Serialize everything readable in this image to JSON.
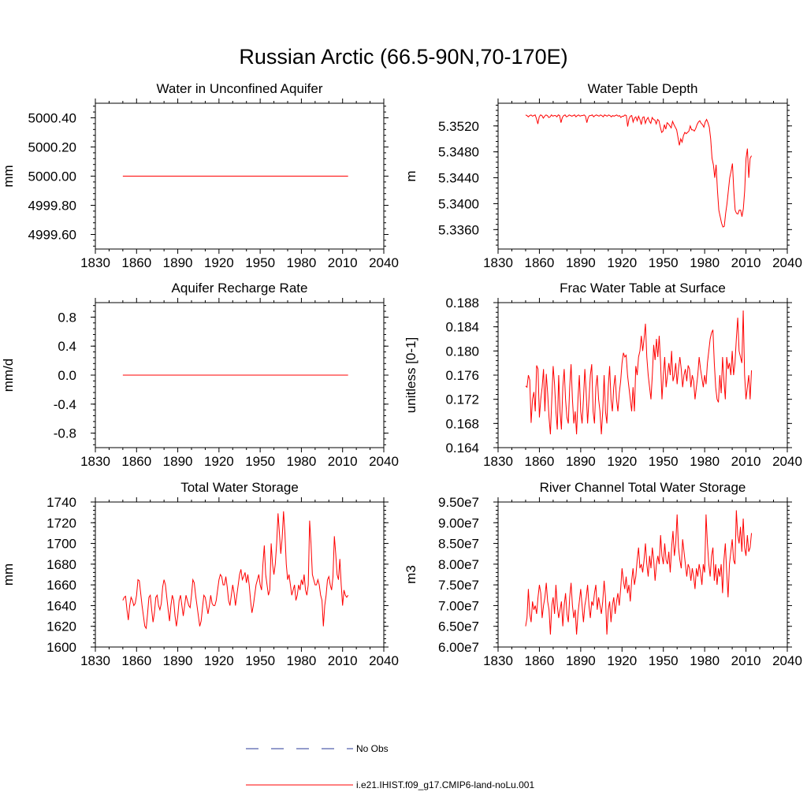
{
  "figure": {
    "title": "Russian Arctic (66.5-90N,70-170E)"
  },
  "legend": {
    "entries": [
      {
        "label": "No Obs",
        "color": "#2a3a9a",
        "dash": true
      },
      {
        "label": "i.e21.IHIST.f09_g17.CMIP6-land-noLu.001",
        "color": "#ff0000",
        "dash": false
      }
    ]
  },
  "chart_data": [
    {
      "type": "line",
      "title": "Water in Unconfined Aquifer",
      "ylabel": "mm",
      "xlim": [
        1830,
        2040
      ],
      "xticks": [
        1830,
        1860,
        1890,
        1920,
        1950,
        1980,
        2010,
        2040
      ],
      "ylim": [
        4999.5,
        5000.5
      ],
      "yticks": [
        4999.6,
        4999.8,
        5000.0,
        5000.2,
        5000.4
      ],
      "ytick_labels": [
        "4999.60",
        "4999.80",
        "5000.00",
        "5000.20",
        "5000.40"
      ],
      "series": [
        {
          "color": "#ff0000",
          "x_start": 1850,
          "x_end": 2014,
          "values": [
            5000.0,
            5000.0,
            5000.0
          ]
        }
      ]
    },
    {
      "type": "line",
      "title": "Water Table Depth",
      "ylabel": "m",
      "xlim": [
        1830,
        2040
      ],
      "xticks": [
        1830,
        1860,
        1890,
        1920,
        1950,
        1980,
        2010,
        2040
      ],
      "ylim": [
        5.333,
        5.3555
      ],
      "yticks": [
        5.336,
        5.34,
        5.344,
        5.348,
        5.352
      ],
      "ytick_labels": [
        "5.3360",
        "5.3400",
        "5.3440",
        "5.3480",
        "5.3520"
      ],
      "series": [
        {
          "color": "#ff0000",
          "x_start": 1850,
          "x_end": 2014,
          "values": [
            5.3537,
            5.3536,
            5.3534,
            5.3536,
            5.3537,
            5.3535,
            5.3536,
            5.3537,
            5.3531,
            5.3523,
            5.3534,
            5.3537,
            5.3536,
            5.3532,
            5.3535,
            5.3537,
            5.3536,
            5.3533,
            5.3534,
            5.3537,
            5.3535,
            5.3536,
            5.3536,
            5.3534,
            5.3537,
            5.3536,
            5.3525,
            5.3533,
            5.3536,
            5.3537,
            5.3534,
            5.3535,
            5.3537,
            5.3536,
            5.3535,
            5.3536,
            5.3537,
            5.3534,
            5.3536,
            5.3537,
            5.3535,
            5.3536,
            5.3536,
            5.3537,
            5.3535,
            5.3525,
            5.3533,
            5.3536,
            5.3536,
            5.3537,
            5.3534,
            5.3536,
            5.3537,
            5.3536,
            5.3535,
            5.3537,
            5.3536,
            5.3534,
            5.3537,
            5.3536,
            5.3535,
            5.3537,
            5.3536,
            5.3534,
            5.3536,
            5.3535,
            5.3536,
            5.3537,
            5.3535,
            5.3536,
            5.3533,
            5.3535,
            5.3535,
            5.3537,
            5.3536,
            5.3519,
            5.3531,
            5.3535,
            5.3536,
            5.3526,
            5.3532,
            5.3534,
            5.3528,
            5.3535,
            5.353,
            5.3522,
            5.3533,
            5.3534,
            5.3524,
            5.353,
            5.3533,
            5.3527,
            5.3524,
            5.3533,
            5.353,
            5.3529,
            5.3523,
            5.353,
            5.3528,
            5.3518,
            5.351,
            5.3512,
            5.3522,
            5.3515,
            5.3525,
            5.3523,
            5.352,
            5.3517,
            5.3527,
            5.3522,
            5.3518,
            5.3514,
            5.3502,
            5.349,
            5.35,
            5.3495,
            5.3505,
            5.351,
            5.3508,
            5.351,
            5.3512,
            5.352,
            5.3514,
            5.3514,
            5.3512,
            5.3516,
            5.3522,
            5.3526,
            5.3528,
            5.3524,
            5.3522,
            5.3518,
            5.3526,
            5.353,
            5.3525,
            5.3518,
            5.35,
            5.347,
            5.346,
            5.344,
            5.346,
            5.342,
            5.339,
            5.338,
            5.337,
            5.3364,
            5.3365,
            5.3385,
            5.34,
            5.342,
            5.344,
            5.345,
            5.3462,
            5.342,
            5.339,
            5.3385,
            5.3384,
            5.339,
            5.339,
            5.338,
            5.3392,
            5.342,
            5.347,
            5.3485,
            5.344,
            5.347,
            5.3474
          ]
        }
      ]
    },
    {
      "type": "line",
      "title": "Aquifer Recharge Rate",
      "ylabel": "mm/d",
      "xlim": [
        1830,
        2040
      ],
      "xticks": [
        1830,
        1860,
        1890,
        1920,
        1950,
        1980,
        2010,
        2040
      ],
      "ylim": [
        -1.0,
        1.0
      ],
      "yticks": [
        -0.8,
        -0.4,
        0.0,
        0.4,
        0.8
      ],
      "ytick_labels": [
        "-0.8",
        "-0.4",
        "0.0",
        "0.4",
        "0.8"
      ],
      "series": [
        {
          "color": "#ff0000",
          "x_start": 1850,
          "x_end": 2014,
          "values": [
            0.0,
            0.0,
            0.0
          ]
        }
      ]
    },
    {
      "type": "line",
      "title": "Frac Water Table at Surface",
      "ylabel": "unitless [0-1]",
      "xlim": [
        1830,
        2040
      ],
      "xticks": [
        1830,
        1860,
        1890,
        1920,
        1950,
        1980,
        2010,
        2040
      ],
      "ylim": [
        0.164,
        0.188
      ],
      "yticks": [
        0.164,
        0.168,
        0.172,
        0.176,
        0.18,
        0.184,
        0.188
      ],
      "ytick_labels": [
        "0.164",
        "0.168",
        "0.172",
        "0.176",
        "0.180",
        "0.184",
        "0.188"
      ],
      "series": [
        {
          "color": "#ff0000",
          "x_start": 1850,
          "x_end": 2014,
          "values": [
            0.1742,
            0.174,
            0.176,
            0.1752,
            0.1681,
            0.172,
            0.1732,
            0.17,
            0.1776,
            0.177,
            0.169,
            0.172,
            0.174,
            0.177,
            0.17,
            0.1762,
            0.173,
            0.169,
            0.1662,
            0.172,
            0.1775,
            0.1745,
            0.17,
            0.167,
            0.176,
            0.17,
            0.167,
            0.174,
            0.177,
            0.172,
            0.169,
            0.168,
            0.174,
            0.1778,
            0.172,
            0.168,
            0.17,
            0.1662,
            0.172,
            0.176,
            0.17,
            0.168,
            0.172,
            0.177,
            0.173,
            0.168,
            0.172,
            0.176,
            0.1778,
            0.17,
            0.168,
            0.174,
            0.176,
            0.172,
            0.17,
            0.1662,
            0.17,
            0.176,
            0.17,
            0.168,
            0.174,
            0.1775,
            0.172,
            0.17,
            0.174,
            0.176,
            0.172,
            0.17,
            0.173,
            0.175,
            0.178,
            0.1797,
            0.179,
            0.1793,
            0.176,
            0.174,
            0.172,
            0.17,
            0.174,
            0.17,
            0.1775,
            0.176,
            0.179,
            0.18,
            0.1825,
            0.18,
            0.182,
            0.1845,
            0.179,
            0.176,
            0.174,
            0.172,
            0.176,
            0.181,
            0.1785,
            0.182,
            0.179,
            0.1825,
            0.178,
            0.172,
            0.176,
            0.179,
            0.174,
            0.176,
            0.178,
            0.176,
            0.18,
            0.175,
            0.176,
            0.178,
            0.1745,
            0.177,
            0.179,
            0.177,
            0.174,
            0.176,
            0.177,
            0.175,
            0.1776,
            0.177,
            0.174,
            0.176,
            0.175,
            0.172,
            0.174,
            0.176,
            0.179,
            0.177,
            0.1755,
            0.174,
            0.176,
            0.1745,
            0.178,
            0.18,
            0.182,
            0.183,
            0.1835,
            0.178,
            0.174,
            0.172,
            0.1715,
            0.176,
            0.173,
            0.179,
            0.175,
            0.172,
            0.179,
            0.177,
            0.178,
            0.176,
            0.18,
            0.176,
            0.178,
            0.182,
            0.1855,
            0.18,
            0.179,
            0.178,
            0.1867,
            0.176,
            0.172,
            0.174,
            0.176,
            0.172,
            0.1768
          ]
        }
      ]
    },
    {
      "type": "line",
      "title": "Total Water Storage",
      "ylabel": "mm",
      "xlim": [
        1830,
        2040
      ],
      "xticks": [
        1830,
        1860,
        1890,
        1920,
        1950,
        1980,
        2010,
        2040
      ],
      "ylim": [
        1600,
        1740
      ],
      "yticks": [
        1600,
        1620,
        1640,
        1660,
        1680,
        1700,
        1720,
        1740
      ],
      "ytick_labels": [
        "1600",
        "1620",
        "1640",
        "1660",
        "1680",
        "1700",
        "1720",
        "1740"
      ],
      "series": [
        {
          "color": "#ff0000",
          "x_start": 1850,
          "x_end": 2014,
          "values": [
            1645,
            1648,
            1649,
            1636,
            1626,
            1640,
            1648,
            1645,
            1640,
            1642,
            1650,
            1665,
            1664,
            1652,
            1640,
            1630,
            1620,
            1618,
            1632,
            1648,
            1650,
            1636,
            1624,
            1633,
            1648,
            1650,
            1640,
            1636,
            1642,
            1658,
            1665,
            1660,
            1648,
            1636,
            1625,
            1640,
            1650,
            1645,
            1630,
            1620,
            1630,
            1645,
            1650,
            1640,
            1630,
            1640,
            1650,
            1645,
            1640,
            1638,
            1650,
            1665,
            1662,
            1650,
            1640,
            1630,
            1620,
            1625,
            1638,
            1650,
            1648,
            1640,
            1632,
            1640,
            1650,
            1642,
            1640,
            1640,
            1645,
            1655,
            1665,
            1670,
            1668,
            1660,
            1660,
            1668,
            1658,
            1645,
            1640,
            1650,
            1660,
            1652,
            1640,
            1650,
            1660,
            1670,
            1675,
            1665,
            1668,
            1672,
            1662,
            1670,
            1660,
            1645,
            1633,
            1640,
            1650,
            1660,
            1665,
            1670,
            1660,
            1655,
            1680,
            1698,
            1670,
            1660,
            1650,
            1655,
            1700,
            1680,
            1670,
            1680,
            1700,
            1729,
            1710,
            1690,
            1705,
            1731,
            1710,
            1680,
            1665,
            1670,
            1660,
            1650,
            1655,
            1660,
            1645,
            1650,
            1660,
            1655,
            1665,
            1660,
            1670,
            1655,
            1650,
            1660,
            1722,
            1700,
            1670,
            1665,
            1660,
            1660,
            1665,
            1660,
            1650,
            1645,
            1620,
            1640,
            1650,
            1665,
            1668,
            1660,
            1655,
            1668,
            1707,
            1690,
            1670,
            1665,
            1685,
            1660,
            1640,
            1655,
            1650,
            1648,
            1650
          ]
        }
      ]
    },
    {
      "type": "line",
      "title": "River Channel Total Water Storage",
      "ylabel": "m3",
      "xlim": [
        1830,
        2040
      ],
      "xticks": [
        1830,
        1860,
        1890,
        1920,
        1950,
        1980,
        2010,
        2040
      ],
      "ylim": [
        60000000.0,
        95000000.0
      ],
      "yticks": [
        60000000.0,
        65000000.0,
        70000000.0,
        75000000.0,
        80000000.0,
        85000000.0,
        90000000.0,
        95000000.0
      ],
      "ytick_labels": [
        "6.00e7",
        "6.50e7",
        "7.00e7",
        "7.50e7",
        "8.00e7",
        "8.50e7",
        "9.00e7",
        "9.50e7"
      ],
      "series": [
        {
          "color": "#ff0000",
          "x_start": 1850,
          "x_end": 2014,
          "values": [
            65000000.0,
            67000000.0,
            74000000.0,
            68000000.0,
            66000000.0,
            71000000.0,
            69000000.0,
            70000000.0,
            68000000.0,
            72000000.0,
            75000000.0,
            73000000.0,
            67000000.0,
            70000000.0,
            72000000.0,
            75500000.0,
            71000000.0,
            69000000.0,
            63000000.0,
            70000000.0,
            72000000.0,
            68000000.0,
            75000000.0,
            70000000.0,
            67000000.0,
            69000000.0,
            71000000.0,
            65000000.0,
            70000000.0,
            73000000.0,
            68000000.0,
            66000000.0,
            72000000.0,
            75500000.0,
            70000000.0,
            67000000.0,
            69000000.0,
            63000000.0,
            68000000.0,
            71000000.0,
            74000000.0,
            70000000.0,
            66000000.0,
            70000000.0,
            72000000.0,
            75000000.0,
            70000000.0,
            67000000.0,
            71000000.0,
            70000000.0,
            73000000.0,
            75000000.0,
            69000000.0,
            72000000.0,
            70000000.0,
            68000000.0,
            71000000.0,
            76000000.0,
            72000000.0,
            63000000.0,
            69000000.0,
            71000000.0,
            66000000.0,
            70000000.0,
            72000000.0,
            68000000.0,
            71000000.0,
            73000000.0,
            70000000.0,
            74000000.0,
            79000000.0,
            76000000.0,
            74000000.0,
            77000000.0,
            73000000.0,
            75000000.0,
            71000000.0,
            76000000.0,
            79000000.0,
            75000000.0,
            77000000.0,
            81000000.0,
            84000000.0,
            79000000.0,
            80000000.0,
            78000000.0,
            81000000.0,
            85000000.0,
            80000000.0,
            77000000.0,
            82000000.0,
            79000000.0,
            84000000.0,
            81000000.0,
            76000000.0,
            80000000.0,
            82000000.0,
            80000000.0,
            87000000.0,
            82000000.0,
            80000000.0,
            85000000.0,
            81000000.0,
            80000000.0,
            83000000.0,
            78000000.0,
            84000000.0,
            88000000.0,
            82000000.0,
            85000000.0,
            92000000.0,
            84000000.0,
            81000000.0,
            79000000.0,
            86000000.0,
            83000000.0,
            80000000.0,
            77000000.0,
            80000000.0,
            79000000.0,
            76000000.0,
            79000000.0,
            77000000.0,
            74000000.0,
            79000000.0,
            77000000.0,
            80000000.0,
            78000000.0,
            75000000.0,
            80000000.0,
            78000000.0,
            92000000.0,
            85000000.0,
            80000000.0,
            77000000.0,
            82000000.0,
            84000000.0,
            76000000.0,
            80000000.0,
            75000000.0,
            79000000.0,
            77000000.0,
            80000000.0,
            73000000.0,
            81000000.0,
            85000000.0,
            78000000.0,
            72000000.0,
            80000000.0,
            83000000.0,
            86000000.0,
            81000000.0,
            80000000.0,
            93000000.0,
            87000000.0,
            85000000.0,
            89000000.0,
            83000000.0,
            91000000.0,
            84000000.0,
            82000000.0,
            87000000.0,
            83000000.0,
            84000000.0,
            87500000.0
          ]
        }
      ]
    }
  ]
}
